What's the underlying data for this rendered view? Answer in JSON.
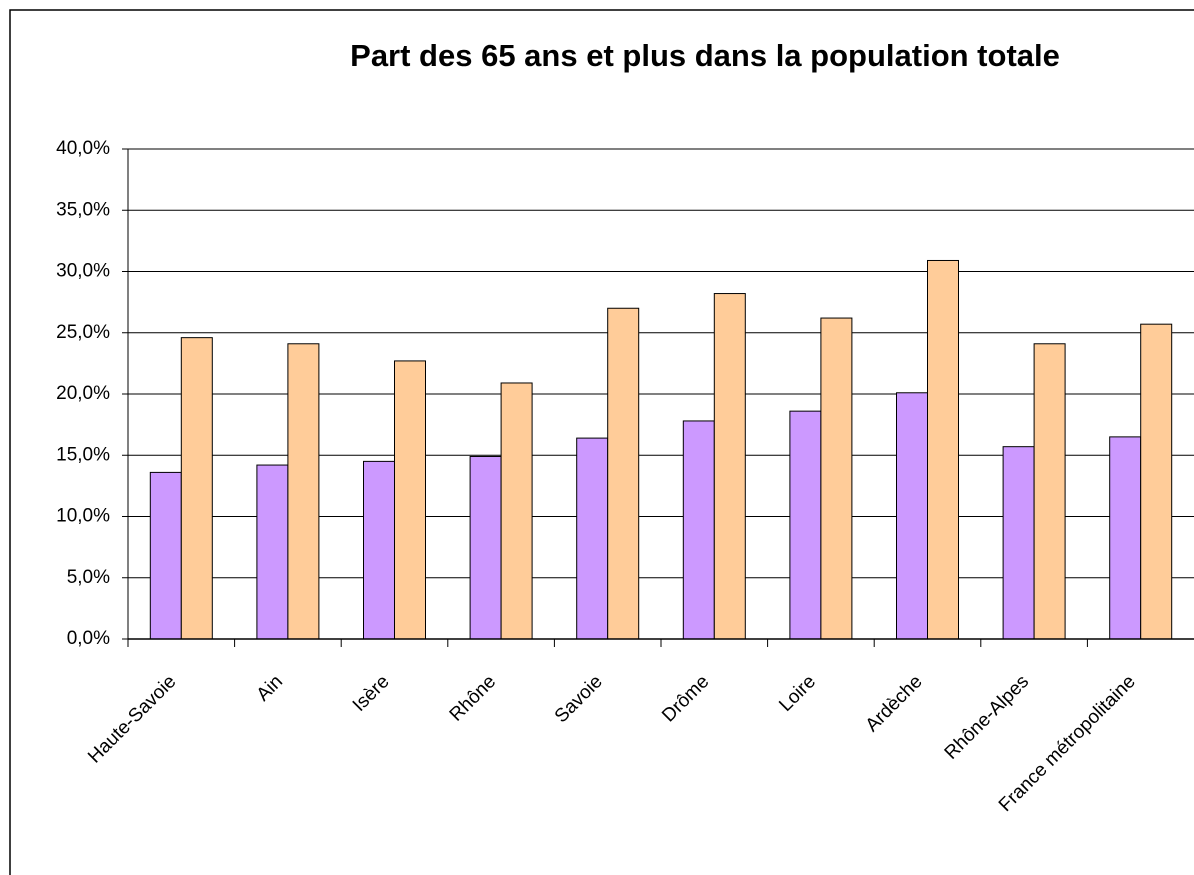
{
  "chart_data": {
    "type": "bar",
    "title": "Part des 65 ans et plus dans la population totale",
    "categories": [
      "Haute-Savoie",
      "Ain",
      "Isère",
      "Rhône",
      "Savoie",
      "Drôme",
      "Loire",
      "Ardèche",
      "Rhône-Alpes",
      "France métropolitaine"
    ],
    "series": [
      {
        "color": "#cc99ff",
        "values": [
          13.6,
          14.2,
          14.5,
          14.9,
          16.4,
          17.8,
          18.6,
          20.1,
          15.7,
          16.5
        ]
      },
      {
        "color": "#ffcc99",
        "values": [
          24.6,
          24.1,
          22.7,
          20.9,
          27.0,
          28.2,
          26.2,
          30.9,
          24.1,
          25.7
        ]
      }
    ],
    "ylim": [
      0,
      40
    ],
    "yticks": [
      {
        "value": 0,
        "label": "0,0%"
      },
      {
        "value": 5,
        "label": "5,0%"
      },
      {
        "value": 10,
        "label": "10,0%"
      },
      {
        "value": 15,
        "label": "15,0%"
      },
      {
        "value": 20,
        "label": "20,0%"
      },
      {
        "value": 25,
        "label": "25,0%"
      },
      {
        "value": 30,
        "label": "30,0%"
      },
      {
        "value": 35,
        "label": "35,0%"
      },
      {
        "value": 40,
        "label": "40,0%"
      }
    ],
    "grid": true
  }
}
